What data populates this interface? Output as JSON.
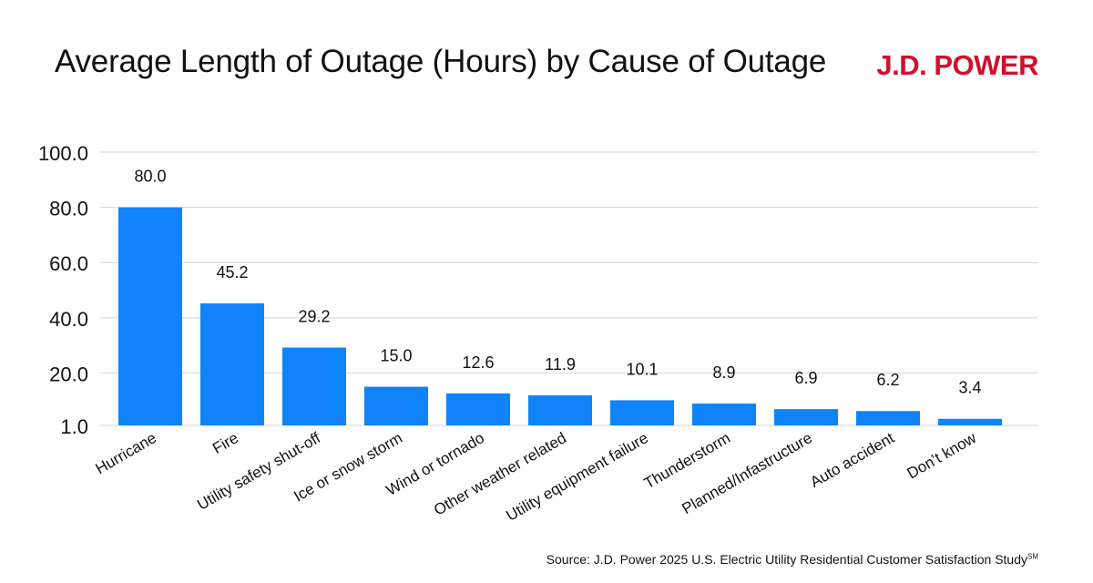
{
  "header": {
    "title": "Average Length of Outage (Hours) by Cause of Outage",
    "logo_text": "J.D. POWER"
  },
  "footer": {
    "source": "Source: J.D. Power 2025 U.S. Electric Utility Residential Customer Satisfaction Study",
    "source_mark": "SM"
  },
  "colors": {
    "bar": "#1083f8",
    "brand": "#d0102b",
    "grid": "#d4d4d4",
    "text": "#111111"
  },
  "chart_data": {
    "type": "bar",
    "title": "Average Length of Outage (Hours) by Cause of Outage",
    "xlabel": "",
    "ylabel": "",
    "categories": [
      "Hurricane",
      "Fire",
      "Utility safety shut-off",
      "Ice or snow storm",
      "Wind or tornado",
      "Other weather related",
      "Utility equipment failure",
      "Thunderstorm",
      "Planned/Infastructure",
      "Auto accident",
      "Don’t know"
    ],
    "values": [
      80.0,
      45.2,
      29.2,
      15.0,
      12.6,
      11.9,
      10.1,
      8.9,
      6.9,
      6.2,
      3.4
    ],
    "value_labels": [
      "80.0",
      "45.2",
      "29.2",
      "15.0",
      "12.6",
      "11.9",
      "10.1",
      "8.9",
      "6.9",
      "6.2",
      "3.4"
    ],
    "y_ticks": [
      1.0,
      20.0,
      40.0,
      60.0,
      80.0,
      100.0
    ],
    "y_tick_labels": [
      "1.0",
      "20.0",
      "40.0",
      "60.0",
      "80.0",
      "100.0"
    ],
    "ylim": [
      1.0,
      100.0
    ],
    "grid": true,
    "legend": "none"
  }
}
